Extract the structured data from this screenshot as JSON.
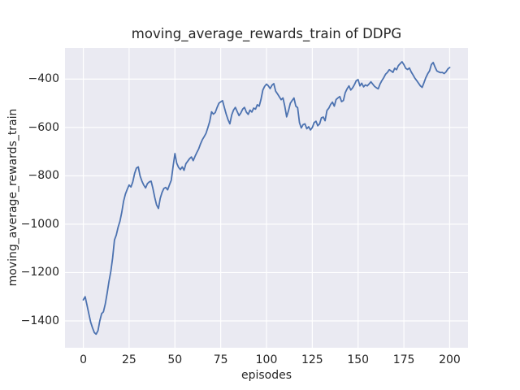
{
  "chart_data": {
    "type": "line",
    "title": "moving_average_rewards_train of DDPG",
    "xlabel": "episodes",
    "ylabel": "moving_average_rewards_train",
    "x_ticks": [
      0,
      25,
      50,
      75,
      100,
      125,
      150,
      175,
      200
    ],
    "x_tick_labels": [
      "0",
      "25",
      "50",
      "75",
      "100",
      "125",
      "150",
      "175",
      "200"
    ],
    "y_ticks": [
      -400,
      -600,
      -800,
      -1000,
      -1200,
      -1400
    ],
    "y_tick_labels": [
      "−400",
      "−600",
      "−800",
      "−1000",
      "−1200",
      "−1400"
    ],
    "xlim": [
      -10,
      210
    ],
    "ylim": [
      -1511,
      -271
    ],
    "grid": true,
    "legend": false,
    "colors": {
      "figure_bg": "#ffffff",
      "plot_bg": "#EAEAF2",
      "grid": "#ffffff",
      "text": "#262626",
      "line": "#4C72B0"
    },
    "series": [
      {
        "name": "moving_average_rewards_train",
        "color": "#4C72B0",
        "points": [
          [
            0,
            -1313
          ],
          [
            1,
            -1300
          ],
          [
            2,
            -1335
          ],
          [
            3,
            -1370
          ],
          [
            4,
            -1405
          ],
          [
            5,
            -1428
          ],
          [
            6,
            -1448
          ],
          [
            7,
            -1455
          ],
          [
            8,
            -1440
          ],
          [
            9,
            -1400
          ],
          [
            10,
            -1370
          ],
          [
            11,
            -1362
          ],
          [
            12,
            -1330
          ],
          [
            13,
            -1285
          ],
          [
            14,
            -1237
          ],
          [
            15,
            -1195
          ],
          [
            16,
            -1140
          ],
          [
            17,
            -1065
          ],
          [
            18,
            -1045
          ],
          [
            19,
            -1012
          ],
          [
            20,
            -988
          ],
          [
            21,
            -950
          ],
          [
            22,
            -905
          ],
          [
            23,
            -875
          ],
          [
            24,
            -855
          ],
          [
            25,
            -838
          ],
          [
            26,
            -846
          ],
          [
            27,
            -825
          ],
          [
            28,
            -790
          ],
          [
            29,
            -768
          ],
          [
            30,
            -763
          ],
          [
            31,
            -800
          ],
          [
            32,
            -822
          ],
          [
            33,
            -838
          ],
          [
            34,
            -850
          ],
          [
            35,
            -832
          ],
          [
            36,
            -825
          ],
          [
            37,
            -822
          ],
          [
            38,
            -852
          ],
          [
            39,
            -890
          ],
          [
            40,
            -920
          ],
          [
            41,
            -935
          ],
          [
            42,
            -893
          ],
          [
            43,
            -868
          ],
          [
            44,
            -852
          ],
          [
            45,
            -848
          ],
          [
            46,
            -858
          ],
          [
            47,
            -838
          ],
          [
            48,
            -818
          ],
          [
            49,
            -762
          ],
          [
            50,
            -708
          ],
          [
            51,
            -748
          ],
          [
            52,
            -765
          ],
          [
            53,
            -774
          ],
          [
            54,
            -763
          ],
          [
            55,
            -777
          ],
          [
            56,
            -750
          ],
          [
            57,
            -739
          ],
          [
            58,
            -729
          ],
          [
            59,
            -722
          ],
          [
            60,
            -737
          ],
          [
            61,
            -719
          ],
          [
            62,
            -703
          ],
          [
            63,
            -688
          ],
          [
            64,
            -668
          ],
          [
            65,
            -650
          ],
          [
            66,
            -638
          ],
          [
            67,
            -624
          ],
          [
            68,
            -600
          ],
          [
            69,
            -575
          ],
          [
            70,
            -535
          ],
          [
            71,
            -545
          ],
          [
            72,
            -538
          ],
          [
            73,
            -518
          ],
          [
            74,
            -500
          ],
          [
            75,
            -494
          ],
          [
            76,
            -489
          ],
          [
            77,
            -517
          ],
          [
            78,
            -545
          ],
          [
            79,
            -568
          ],
          [
            80,
            -585
          ],
          [
            81,
            -548
          ],
          [
            82,
            -528
          ],
          [
            83,
            -517
          ],
          [
            84,
            -534
          ],
          [
            85,
            -551
          ],
          [
            86,
            -540
          ],
          [
            87,
            -524
          ],
          [
            88,
            -517
          ],
          [
            89,
            -536
          ],
          [
            90,
            -546
          ],
          [
            91,
            -528
          ],
          [
            92,
            -536
          ],
          [
            93,
            -520
          ],
          [
            94,
            -524
          ],
          [
            95,
            -506
          ],
          [
            96,
            -512
          ],
          [
            97,
            -484
          ],
          [
            98,
            -445
          ],
          [
            99,
            -430
          ],
          [
            100,
            -421
          ],
          [
            101,
            -428
          ],
          [
            102,
            -439
          ],
          [
            103,
            -425
          ],
          [
            104,
            -419
          ],
          [
            105,
            -450
          ],
          [
            106,
            -461
          ],
          [
            107,
            -473
          ],
          [
            108,
            -485
          ],
          [
            109,
            -478
          ],
          [
            110,
            -512
          ],
          [
            111,
            -556
          ],
          [
            112,
            -530
          ],
          [
            113,
            -500
          ],
          [
            114,
            -488
          ],
          [
            115,
            -478
          ],
          [
            116,
            -512
          ],
          [
            117,
            -518
          ],
          [
            118,
            -580
          ],
          [
            119,
            -602
          ],
          [
            120,
            -588
          ],
          [
            121,
            -585
          ],
          [
            122,
            -605
          ],
          [
            123,
            -597
          ],
          [
            124,
            -610
          ],
          [
            125,
            -600
          ],
          [
            126,
            -580
          ],
          [
            127,
            -574
          ],
          [
            128,
            -593
          ],
          [
            129,
            -585
          ],
          [
            130,
            -560
          ],
          [
            131,
            -557
          ],
          [
            132,
            -572
          ],
          [
            133,
            -530
          ],
          [
            134,
            -520
          ],
          [
            135,
            -505
          ],
          [
            136,
            -495
          ],
          [
            137,
            -512
          ],
          [
            138,
            -484
          ],
          [
            139,
            -478
          ],
          [
            140,
            -472
          ],
          [
            141,
            -493
          ],
          [
            142,
            -488
          ],
          [
            143,
            -456
          ],
          [
            144,
            -440
          ],
          [
            145,
            -428
          ],
          [
            146,
            -445
          ],
          [
            147,
            -436
          ],
          [
            148,
            -423
          ],
          [
            149,
            -406
          ],
          [
            150,
            -402
          ],
          [
            151,
            -428
          ],
          [
            152,
            -417
          ],
          [
            153,
            -432
          ],
          [
            154,
            -424
          ],
          [
            155,
            -428
          ],
          [
            156,
            -420
          ],
          [
            157,
            -411
          ],
          [
            158,
            -421
          ],
          [
            159,
            -430
          ],
          [
            160,
            -436
          ],
          [
            161,
            -440
          ],
          [
            162,
            -420
          ],
          [
            163,
            -406
          ],
          [
            164,
            -394
          ],
          [
            165,
            -380
          ],
          [
            166,
            -372
          ],
          [
            167,
            -361
          ],
          [
            168,
            -366
          ],
          [
            169,
            -372
          ],
          [
            170,
            -355
          ],
          [
            171,
            -361
          ],
          [
            172,
            -344
          ],
          [
            173,
            -336
          ],
          [
            174,
            -328
          ],
          [
            175,
            -340
          ],
          [
            176,
            -355
          ],
          [
            177,
            -360
          ],
          [
            178,
            -354
          ],
          [
            179,
            -370
          ],
          [
            180,
            -383
          ],
          [
            181,
            -396
          ],
          [
            182,
            -406
          ],
          [
            183,
            -417
          ],
          [
            184,
            -428
          ],
          [
            185,
            -434
          ],
          [
            186,
            -414
          ],
          [
            187,
            -394
          ],
          [
            188,
            -378
          ],
          [
            189,
            -366
          ],
          [
            190,
            -340
          ],
          [
            191,
            -331
          ],
          [
            192,
            -350
          ],
          [
            193,
            -366
          ],
          [
            194,
            -370
          ],
          [
            195,
            -373
          ],
          [
            196,
            -372
          ],
          [
            197,
            -377
          ],
          [
            198,
            -370
          ],
          [
            199,
            -358
          ],
          [
            200,
            -352
          ]
        ]
      }
    ]
  }
}
